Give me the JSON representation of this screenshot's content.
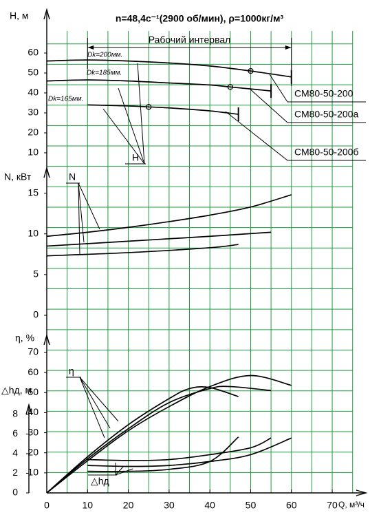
{
  "chart_data": [
    {
      "type": "line",
      "title": "n=48,4с⁻¹(2900 об/мин), ρ=1000кг/м³",
      "ylabel": "H, м",
      "ylim": [
        0,
        70
      ],
      "yticks": [
        10,
        20,
        30,
        40,
        50,
        60
      ],
      "grid": true,
      "annotation": "H",
      "interval_label": "Рабочий интервал",
      "interval": [
        10,
        60
      ],
      "series": [
        {
          "name": "СМ80-50-200",
          "diameter": "Dk=200мм.",
          "color": "#000000",
          "x": [
            0,
            10,
            20,
            30,
            40,
            50,
            60
          ],
          "values": [
            56,
            56.5,
            56,
            55,
            53.5,
            51,
            48
          ],
          "nominal": {
            "x": 50,
            "y": 51
          }
        },
        {
          "name": "СМ80-50-200а",
          "diameter": "Dk=185мм.",
          "color": "#000000",
          "x": [
            0,
            10,
            20,
            30,
            40,
            45,
            55
          ],
          "values": [
            46,
            46.5,
            46,
            45,
            44,
            43,
            41
          ],
          "nominal": {
            "x": 45,
            "y": 43
          }
        },
        {
          "name": "СМ80-50-200б",
          "diameter": "Dk=165мм.",
          "color": "#000000",
          "x": [
            10,
            20,
            25,
            30,
            40,
            47
          ],
          "values": [
            34,
            33.5,
            33,
            32.5,
            31,
            29.3
          ],
          "nominal": {
            "x": 25,
            "y": 33
          }
        }
      ]
    },
    {
      "type": "line",
      "ylabel": "N, кВт",
      "ylim": [
        0,
        17.5
      ],
      "yticks": [
        0,
        5,
        10,
        15
      ],
      "annotation": "N",
      "series": [
        {
          "color": "#000000",
          "x": [
            0,
            10,
            20,
            30,
            40,
            50,
            60
          ],
          "values": [
            9.7,
            10.2,
            10.8,
            11.5,
            12.3,
            13.3,
            14.8
          ]
        },
        {
          "color": "#000000",
          "x": [
            0,
            20,
            40,
            55
          ],
          "values": [
            8.5,
            9.1,
            9.7,
            10.2
          ]
        },
        {
          "color": "#000000",
          "x": [
            0,
            20,
            40,
            47
          ],
          "values": [
            7.3,
            7.7,
            8.3,
            8.7
          ]
        }
      ]
    },
    {
      "type": "line",
      "ylabel": "η, %",
      "ylim": [
        0,
        70
      ],
      "yticks": [
        10,
        20,
        30,
        40,
        50,
        60,
        70
      ],
      "annotation": "η",
      "series": [
        {
          "color": "#000000",
          "x": [
            0,
            10,
            20,
            30,
            40,
            50,
            60
          ],
          "values": [
            0,
            16,
            31,
            43,
            53,
            58.5,
            53.6
          ]
        },
        {
          "color": "#000000",
          "x": [
            0,
            10,
            20,
            30,
            40,
            45,
            55
          ],
          "values": [
            0,
            17,
            32,
            45,
            52,
            53,
            51
          ]
        },
        {
          "color": "#000000",
          "x": [
            0,
            10,
            20,
            30,
            35,
            40,
            47
          ],
          "values": [
            0,
            18,
            34,
            47,
            52,
            52.5,
            48
          ]
        }
      ]
    },
    {
      "type": "line",
      "ylabel": "△hд, м",
      "ylim": [
        0,
        8
      ],
      "yticks": [
        0,
        2,
        4,
        6,
        8
      ],
      "annotation": "△hд",
      "xlabel": "Q, м³/ч",
      "xlim": [
        0,
        75
      ],
      "xticks": [
        0,
        10,
        20,
        30,
        40,
        50,
        60,
        70
      ],
      "series": [
        {
          "color": "#000000",
          "x": [
            10,
            20,
            30,
            40,
            50,
            60
          ],
          "values": [
            2.8,
            2.7,
            2.8,
            3.2,
            3.9,
            5.6
          ]
        },
        {
          "color": "#000000",
          "x": [
            10,
            20,
            30,
            40,
            50,
            55
          ],
          "values": [
            3.4,
            3.3,
            3.4,
            3.9,
            4.6,
            5.6
          ]
        },
        {
          "color": "#000000",
          "x": [
            10,
            20,
            30,
            40,
            47
          ],
          "values": [
            2.2,
            2.2,
            2.4,
            3.2,
            5.7
          ]
        }
      ]
    }
  ]
}
